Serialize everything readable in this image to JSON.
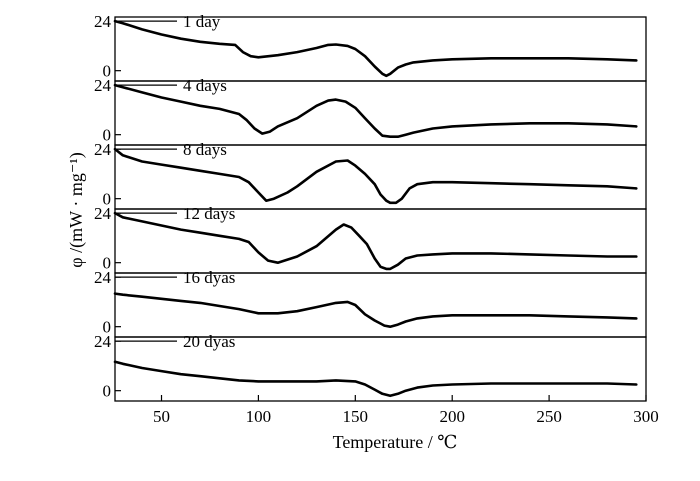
{
  "chart_data": {
    "type": "line",
    "xlabel": "Temperature / ℃",
    "ylabel": "φ /(mW · mg⁻¹)",
    "xlim": [
      26,
      300
    ],
    "x_ticks": [
      50,
      100,
      150,
      200,
      250,
      300
    ],
    "y_ticks": [
      0,
      24
    ],
    "panel_ylim": [
      -5,
      26
    ],
    "series": [
      {
        "name": "1 day",
        "x": [
          26,
          30,
          40,
          50,
          60,
          70,
          80,
          88,
          92,
          96,
          100,
          110,
          120,
          130,
          136,
          140,
          146,
          150,
          155,
          160,
          164,
          166,
          168,
          172,
          176,
          180,
          190,
          200,
          220,
          240,
          260,
          280,
          295
        ],
        "y": [
          24,
          23,
          20,
          17.5,
          15.5,
          14,
          13,
          12.5,
          9,
          7,
          6.5,
          7.5,
          9,
          11,
          12.5,
          12.7,
          12,
          10.5,
          7,
          2,
          -1.5,
          -2.5,
          -1.5,
          1.5,
          3,
          4,
          5,
          5.5,
          6,
          6,
          6,
          5.5,
          5
        ]
      },
      {
        "name": "4 days",
        "x": [
          26,
          30,
          40,
          50,
          60,
          70,
          80,
          90,
          94,
          98,
          102,
          106,
          110,
          120,
          130,
          136,
          140,
          145,
          150,
          155,
          160,
          164,
          168,
          172,
          176,
          180,
          190,
          200,
          220,
          240,
          260,
          280,
          295
        ],
        "y": [
          24,
          23,
          20.5,
          18,
          16,
          14,
          12.5,
          10,
          7,
          3,
          0.5,
          1.5,
          4,
          8,
          14,
          16.5,
          17,
          16,
          13,
          8,
          3,
          -0.5,
          -1,
          -1,
          0,
          1,
          3,
          4,
          5,
          5.5,
          5.5,
          5,
          4
        ]
      },
      {
        "name": "8 days",
        "x": [
          26,
          30,
          40,
          50,
          60,
          70,
          80,
          90,
          95,
          100,
          104,
          108,
          115,
          120,
          130,
          140,
          146,
          150,
          155,
          160,
          163,
          166,
          168,
          171,
          174,
          178,
          182,
          190,
          200,
          220,
          240,
          260,
          280,
          295
        ],
        "y": [
          24,
          21,
          18,
          16.5,
          15,
          13.5,
          12,
          10.5,
          8,
          3,
          -1,
          0,
          3,
          6,
          13,
          18,
          18.5,
          16,
          12,
          7,
          2,
          -1,
          -2,
          -2,
          0,
          5,
          7,
          8,
          8,
          7.5,
          7,
          6.5,
          6,
          5
        ]
      },
      {
        "name": "12 days",
        "x": [
          26,
          30,
          40,
          50,
          60,
          70,
          80,
          90,
          95,
          100,
          105,
          110,
          120,
          130,
          140,
          144,
          148,
          152,
          156,
          160,
          163,
          166,
          168,
          172,
          176,
          182,
          190,
          200,
          220,
          240,
          260,
          280,
          295
        ],
        "y": [
          24,
          22,
          20,
          18,
          16,
          14.5,
          13,
          11.5,
          10,
          5,
          1,
          0,
          3,
          8,
          16,
          18.5,
          17,
          13,
          9,
          2,
          -2,
          -3,
          -3,
          -1,
          2,
          3.5,
          4,
          4.5,
          4.5,
          4,
          3.5,
          3,
          3
        ]
      },
      {
        "name": "16 dyas",
        "x": [
          26,
          30,
          40,
          50,
          60,
          70,
          80,
          90,
          100,
          110,
          120,
          130,
          140,
          146,
          150,
          155,
          160,
          165,
          168,
          172,
          176,
          182,
          190,
          200,
          220,
          240,
          260,
          280,
          295
        ],
        "y": [
          16,
          15.5,
          14.5,
          13.5,
          12.5,
          11.5,
          10,
          8.5,
          6.5,
          6.5,
          7.5,
          9.5,
          11.5,
          12,
          10.5,
          6,
          3,
          0.5,
          0,
          1,
          2.5,
          4,
          5,
          5.5,
          5.5,
          5.5,
          5,
          4.5,
          4
        ]
      },
      {
        "name": "20 dyas",
        "x": [
          26,
          30,
          40,
          50,
          60,
          70,
          80,
          90,
          100,
          110,
          120,
          130,
          140,
          150,
          155,
          160,
          164,
          168,
          172,
          176,
          182,
          190,
          200,
          220,
          240,
          260,
          280,
          295
        ],
        "y": [
          14,
          13,
          11,
          9.5,
          8,
          7,
          6,
          5,
          4.5,
          4.5,
          4.5,
          4.5,
          5,
          4.5,
          3,
          0.5,
          -1.5,
          -2.5,
          -1.5,
          0,
          1.5,
          2.5,
          3,
          3.5,
          3.5,
          3.5,
          3.5,
          3
        ]
      }
    ]
  }
}
